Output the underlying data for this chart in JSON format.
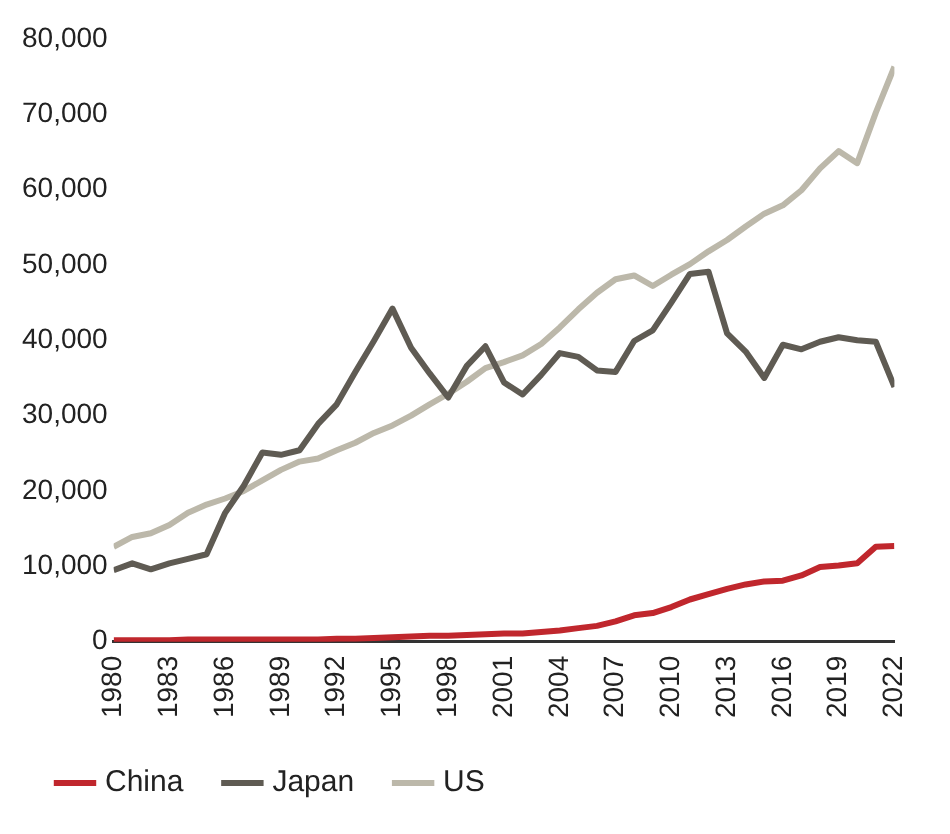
{
  "chart_data": {
    "type": "line",
    "x": [
      1980,
      1981,
      1982,
      1983,
      1984,
      1985,
      1986,
      1987,
      1988,
      1989,
      1990,
      1991,
      1992,
      1993,
      1994,
      1995,
      1996,
      1997,
      1998,
      1999,
      2000,
      2001,
      2002,
      2003,
      2004,
      2005,
      2006,
      2007,
      2008,
      2009,
      2010,
      2011,
      2012,
      2013,
      2014,
      2015,
      2016,
      2017,
      2018,
      2019,
      2020,
      2021,
      2022
    ],
    "series": [
      {
        "name": "China",
        "color": "#c0272d",
        "values": [
          200,
          200,
          200,
          200,
          300,
          300,
          300,
          300,
          300,
          300,
          300,
          300,
          400,
          400,
          500,
          600,
          700,
          800,
          800,
          900,
          1000,
          1100,
          1100,
          1300,
          1500,
          1800,
          2100,
          2700,
          3500,
          3800,
          4600,
          5600,
          6300,
          7000,
          7600,
          8000,
          8100,
          8800,
          9900,
          10100,
          10400,
          12600,
          12700
        ]
      },
      {
        "name": "Japan",
        "color": "#5f5b53",
        "values": [
          9500,
          10400,
          9600,
          10400,
          11000,
          11600,
          17100,
          20700,
          25100,
          24800,
          25400,
          28900,
          31500,
          35800,
          39900,
          44200,
          39000,
          35600,
          32400,
          36600,
          39200,
          34400,
          32800,
          35400,
          38300,
          37800,
          36000,
          35800,
          39900,
          41300,
          45000,
          48800,
          49100,
          40900,
          38500,
          35000,
          39400,
          38800,
          39800,
          40400,
          40000,
          39800,
          33800
        ]
      },
      {
        "name": "US",
        "color": "#bcb8aa",
        "values": [
          12600,
          13900,
          14400,
          15500,
          17100,
          18200,
          19000,
          20000,
          21400,
          22800,
          23900,
          24300,
          25400,
          26400,
          27700,
          28700,
          30000,
          31500,
          32900,
          34500,
          36300,
          37100,
          38000,
          39500,
          41700,
          44100,
          46300,
          48100,
          48600,
          47200,
          48700,
          50100,
          51800,
          53300,
          55100,
          56800,
          57900,
          59900,
          62800,
          65100,
          63500,
          70200,
          76300
        ]
      }
    ],
    "xlim": [
      1980,
      2022
    ],
    "xticks": [
      1980,
      1983,
      1986,
      1989,
      1992,
      1995,
      1998,
      2001,
      2004,
      2007,
      2010,
      2013,
      2016,
      2019,
      2022
    ],
    "ylim": [
      0,
      80000
    ],
    "yticks": [
      0,
      {
        "value": 10000,
        "label": "10,000"
      },
      {
        "value": 20000,
        "label": "20,000"
      },
      {
        "value": 30000,
        "label": "30,000"
      },
      {
        "value": 40000,
        "label": "40,000"
      },
      {
        "value": 50000,
        "label": "50,000"
      },
      {
        "value": 60000,
        "label": "60,000"
      },
      {
        "value": 70000,
        "label": "70,000"
      },
      {
        "value": 80000,
        "label": "80,000"
      }
    ],
    "grid": false,
    "legend": "bottom",
    "marker": "none",
    "line_style": "solid"
  }
}
